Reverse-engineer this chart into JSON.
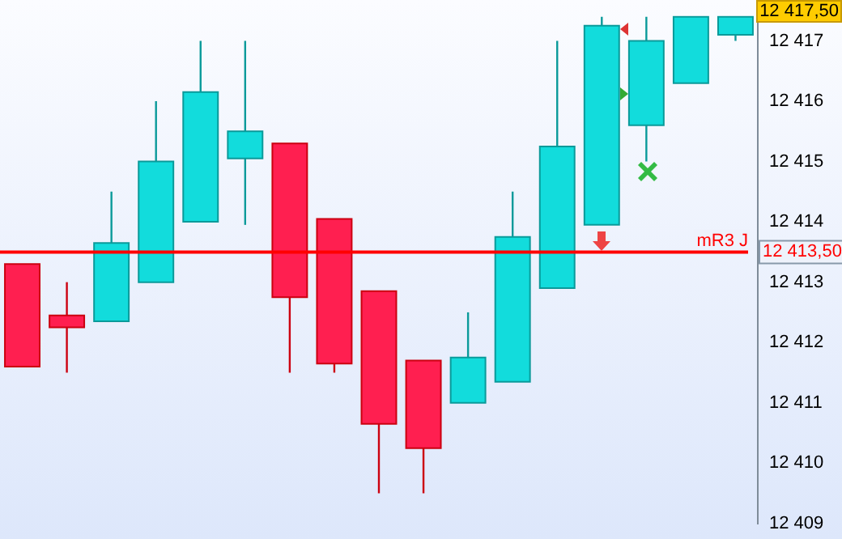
{
  "chart_data": {
    "type": "candlestick",
    "categories": [
      null,
      null,
      null,
      null,
      null,
      null,
      null,
      null,
      null,
      null,
      null,
      null,
      null,
      null,
      null,
      null,
      null
    ],
    "ohlc": [
      [
        12413.3,
        12413.3,
        12411.6,
        12411.6
      ],
      [
        12412.45,
        12413.0,
        12411.5,
        12412.25
      ],
      [
        12412.35,
        12414.5,
        12412.35,
        12413.65
      ],
      [
        12413.0,
        12416.0,
        12413.0,
        12415.0
      ],
      [
        12414.0,
        12417.0,
        12414.0,
        12416.15
      ],
      [
        12415.05,
        12417.0,
        12413.95,
        12415.5
      ],
      [
        12415.3,
        12415.3,
        12411.5,
        12412.75
      ],
      [
        12414.05,
        12414.05,
        12411.5,
        12411.65
      ],
      [
        12412.85,
        12412.85,
        12409.5,
        12410.65
      ],
      [
        12411.7,
        12411.7,
        12409.5,
        12410.25
      ],
      [
        12411.0,
        12412.5,
        12411.0,
        12411.75
      ],
      [
        12411.35,
        12414.5,
        12411.35,
        12413.75
      ],
      [
        12412.9,
        12417.0,
        12412.9,
        12415.25
      ],
      [
        12413.95,
        12417.4,
        12413.95,
        12417.25
      ],
      [
        12415.6,
        12417.4,
        12415.0,
        12417.0
      ],
      [
        12416.3,
        12417.4,
        12416.3,
        12417.4
      ],
      [
        12417.1,
        12417.4,
        12417.0,
        12417.4
      ]
    ],
    "colors": [
      "#ff1f50",
      "#ff1f50",
      "#12dcdc",
      "#12dcdc",
      "#12dcdc",
      "#12dcdc",
      "#ff1f50",
      "#ff1f50",
      "#ff1f50",
      "#ff1f50",
      "#12dcdc",
      "#12dcdc",
      "#12dcdc",
      "#12dcdc",
      "#12dcdc",
      "#12dcdc",
      "#12dcdc"
    ],
    "ylim": [
      12409,
      12417.42
    ],
    "yticks": [
      12409,
      12410,
      12411,
      12412,
      12413,
      12414,
      12415,
      12416,
      12417
    ],
    "ref_lines": [
      {
        "axis": "y",
        "value": 12413.5,
        "label": "mR3 J",
        "color": "#ff0000"
      }
    ],
    "annotations": [
      "12 417,50",
      "12 413,50"
    ]
  }
}
